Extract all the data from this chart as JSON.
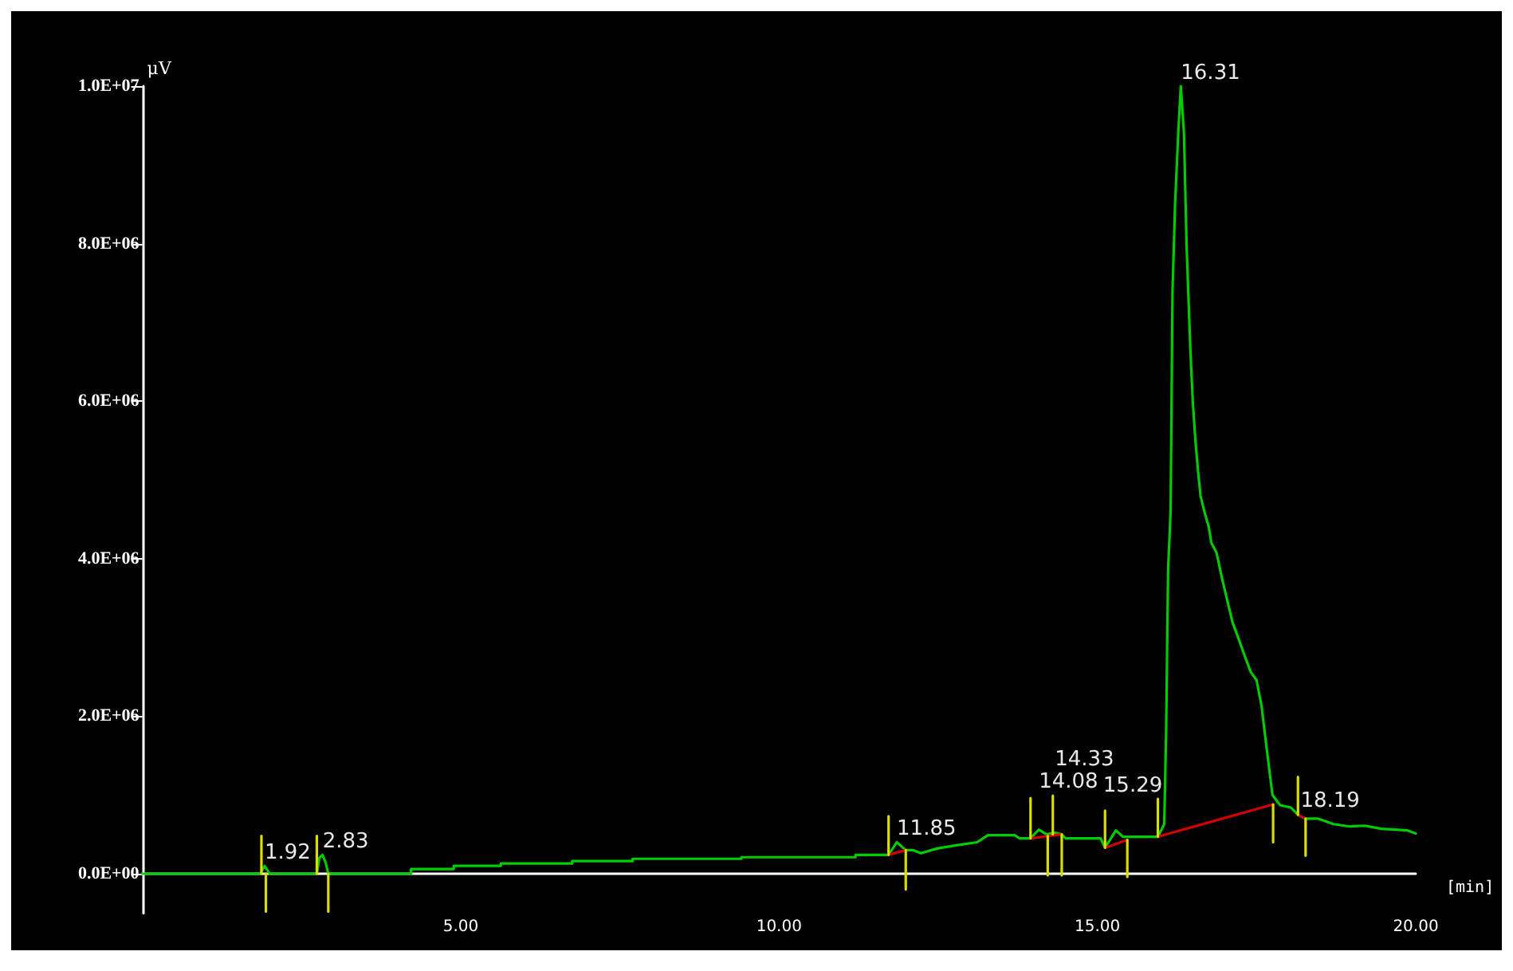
{
  "chart_data": {
    "type": "line",
    "xlabel": "[min]",
    "ylabel": "μV",
    "xlim": [
      0,
      20
    ],
    "xticks": [
      {
        "value": 5,
        "label": "5.00"
      },
      {
        "value": 10,
        "label": "10.00"
      },
      {
        "value": 15,
        "label": "15.00"
      },
      {
        "value": 20,
        "label": "20.00"
      }
    ],
    "ylim": [
      -500000,
      10000000
    ],
    "yticks": [
      {
        "value": 0,
        "label": "0.0E+00"
      },
      {
        "value": 2000000,
        "label": "2.0E+06"
      },
      {
        "value": 4000000,
        "label": "4.0E+06"
      },
      {
        "value": 6000000,
        "label": "6.0E+06"
      },
      {
        "value": 8000000,
        "label": "8.0E+06"
      },
      {
        "value": 10000000,
        "label": "1.0E+07"
      }
    ],
    "marker": "none",
    "line_style": "solid",
    "annotations": [
      {
        "text": "1.92",
        "x": 1.92,
        "y": 100000
      },
      {
        "text": "2.83",
        "x": 2.83,
        "y": 240000
      },
      {
        "text": "11.85",
        "x": 11.85,
        "y": 400000
      },
      {
        "text": "14.08",
        "x": 14.08,
        "y": 560000
      },
      {
        "text": "14.33",
        "x": 14.33,
        "y": 520000
      },
      {
        "text": "15.29",
        "x": 15.29,
        "y": 550000
      },
      {
        "text": "16.31",
        "x": 16.31,
        "y": 10000000
      },
      {
        "text": "18.19",
        "x": 18.19,
        "y": 760000
      }
    ],
    "series": [
      {
        "color": "#00cc00",
        "x": [
          0,
          1.85,
          1.92,
          2.0,
          2.74,
          2.78,
          2.83,
          2.88,
          2.92,
          4.22,
          4.22,
          4.89,
          4.89,
          5.63,
          5.63,
          6.75,
          6.75,
          7.7,
          7.7,
          9.41,
          9.41,
          11.2,
          11.2,
          11.72,
          11.85,
          11.99,
          12.1,
          12.23,
          12.48,
          12.78,
          13.11,
          13.28,
          13.7,
          13.78,
          13.95,
          14.08,
          14.2,
          14.33,
          14.44,
          14.5,
          15.05,
          15.12,
          15.29,
          15.4,
          15.95,
          16.05,
          16.08,
          16.11,
          16.15,
          16.18,
          16.22,
          16.27,
          16.31,
          16.36,
          16.4,
          16.46,
          16.5,
          16.54,
          16.58,
          16.62,
          16.68,
          16.75,
          16.79,
          16.87,
          16.96,
          17.04,
          17.12,
          17.21,
          17.33,
          17.41,
          17.5,
          17.58,
          17.66,
          17.75,
          17.87,
          18.04,
          18.16,
          18.27,
          18.46,
          18.71,
          18.96,
          19.2,
          19.46,
          19.87,
          20.0
        ],
        "values": [
          0,
          0,
          100000,
          0,
          0,
          200000,
          240000,
          140000,
          0,
          0,
          60000,
          60000,
          100000,
          100000,
          130000,
          130000,
          160000,
          160000,
          190000,
          190000,
          210000,
          210000,
          240000,
          240000,
          400000,
          300000,
          300000,
          260000,
          320000,
          360000,
          400000,
          490000,
          490000,
          450000,
          450000,
          560000,
          500000,
          520000,
          500000,
          450000,
          450000,
          330000,
          550000,
          470000,
          470000,
          630000,
          1820000,
          3850000,
          4600000,
          7400000,
          8500000,
          9400000,
          10000000,
          9400000,
          8000000,
          6660000,
          5970000,
          5500000,
          5120000,
          4800000,
          4600000,
          4400000,
          4200000,
          4080000,
          3740000,
          3470000,
          3200000,
          3000000,
          2730000,
          2560000,
          2460000,
          2120000,
          1580000,
          1000000,
          870000,
          840000,
          740000,
          700000,
          700000,
          630000,
          600000,
          610000,
          570000,
          550000,
          510000
        ]
      },
      {
        "color": "#d00000",
        "x": [
          11.72,
          11.99,
          null,
          13.95,
          14.44,
          null,
          15.12,
          15.47,
          null,
          15.95,
          17.76,
          null,
          18.15,
          18.27
        ],
        "values": [
          240000,
          300000,
          null,
          450000,
          500000,
          null,
          330000,
          430000,
          null,
          470000,
          880000,
          null,
          750000,
          700000
        ]
      },
      {
        "color": "#dcdc00",
        "x": [
          1.87,
          1.87,
          null,
          1.94,
          1.94,
          null,
          2.74,
          2.74,
          null,
          2.92,
          2.92,
          null,
          11.72,
          11.72,
          null,
          11.99,
          11.99,
          null,
          13.95,
          13.95,
          null,
          14.22,
          14.22,
          null,
          14.3,
          14.3,
          null,
          14.44,
          14.44,
          null,
          15.12,
          15.12,
          null,
          15.47,
          15.47,
          null,
          15.95,
          15.95,
          null,
          17.76,
          17.76,
          null,
          18.15,
          18.15,
          null,
          18.27,
          18.27
        ],
        "values": [
          0,
          480000,
          null,
          0,
          -480000,
          null,
          0,
          480000,
          null,
          0,
          -480000,
          null,
          240000,
          730000,
          null,
          300000,
          -200000,
          null,
          450000,
          960000,
          null,
          480000,
          -20000,
          null,
          500000,
          990000,
          null,
          500000,
          -20000,
          null,
          330000,
          800000,
          null,
          430000,
          -40000,
          null,
          470000,
          950000,
          null,
          880000,
          400000,
          null,
          750000,
          1230000,
          null,
          700000,
          230000
        ]
      }
    ]
  }
}
